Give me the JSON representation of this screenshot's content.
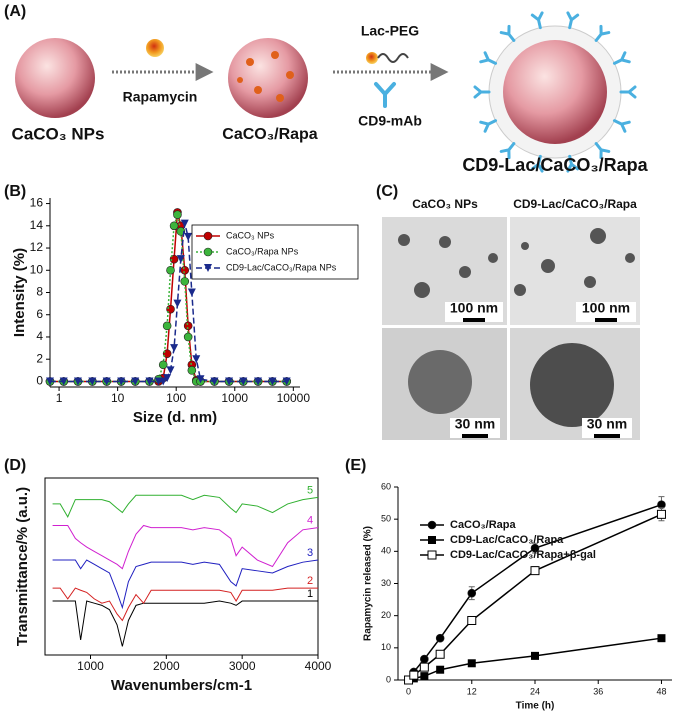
{
  "scheme": {
    "panel": "(A)",
    "labels": [
      "CaCO₃ NPs",
      "Rapamycin",
      "CaCO₃/Rapa",
      "Lac-PEG",
      "CD9-mAb",
      "CD9-Lac/CaCO₃/Rapa"
    ]
  },
  "tem": {
    "panel": "(C)",
    "columns": [
      "CaCO₃ NPs",
      "CD9-Lac/CaCO₃/Rapa"
    ],
    "scale_bars": [
      "100 nm",
      "100 nm",
      "30 nm",
      "30 nm"
    ]
  },
  "chart_data": [
    {
      "type": "line",
      "panel": "(B)",
      "xlabel": "Size (d. nm)",
      "ylabel": "Intensity (%)",
      "xlog": true,
      "xlim": [
        0.7,
        13000
      ],
      "ylim": [
        -0.5,
        16.5
      ],
      "xticks": [
        1,
        10,
        100,
        1000,
        10000
      ],
      "yticks": [
        0,
        2,
        4,
        6,
        8,
        10,
        12,
        14,
        16
      ],
      "legend": "upper right",
      "x": [
        0.7,
        1.2,
        2.1,
        3.7,
        6.5,
        11.5,
        20,
        35,
        50,
        60,
        70,
        80,
        92,
        105,
        120,
        140,
        160,
        185,
        220,
        260,
        450,
        800,
        1400,
        2500,
        4400,
        7700
      ],
      "series": [
        {
          "name": "CaCO₃ NPs",
          "color": "#c00000",
          "marker": "circle",
          "dash": "solid",
          "values": [
            0,
            0,
            0,
            0,
            0,
            0,
            0,
            0,
            0,
            0.3,
            2.5,
            6.5,
            11,
            15.2,
            14,
            10,
            5,
            1.5,
            0.1,
            0,
            0,
            0,
            0,
            0,
            0,
            0
          ]
        },
        {
          "name": "CaCO₃/Rapa NPs",
          "color": "#3cb43c",
          "marker": "circle",
          "dash": "dotted",
          "values": [
            0,
            0,
            0,
            0,
            0,
            0,
            0,
            0,
            0.2,
            1.5,
            5,
            10,
            14,
            15,
            13.5,
            9,
            4,
            1,
            0,
            0,
            0,
            0,
            0,
            0,
            0,
            0
          ]
        },
        {
          "name": "CD9-Lac/CaCO₃/Rapa NPs",
          "color": "#1a2a8c",
          "marker": "triangle-down",
          "dash": "dashed",
          "values": [
            0,
            0,
            0,
            0,
            0,
            0,
            0,
            0,
            0,
            0,
            0.3,
            1,
            3,
            7,
            11,
            14.2,
            13,
            8,
            2,
            0.2,
            0,
            0,
            0,
            0,
            0,
            0
          ]
        }
      ]
    },
    {
      "type": "line",
      "panel": "(D)",
      "xlabel": "Wavenumbers/cm-1",
      "ylabel": "Transmittance/% (a.u.)",
      "xlim": [
        400,
        4000
      ],
      "ylim": [
        -4,
        78
      ],
      "xticks": [
        1000,
        2000,
        3000,
        4000
      ],
      "legend": "line-end",
      "frame": "box",
      "x": [
        500,
        600,
        700,
        800,
        870,
        950,
        1050,
        1150,
        1250,
        1350,
        1420,
        1500,
        1600,
        1700,
        1800,
        2000,
        2200,
        2350,
        2500,
        2700,
        2850,
        2920,
        3000,
        3200,
        3400,
        3600,
        3800,
        4000
      ],
      "series": [
        {
          "name": "1",
          "color": "#000000",
          "values": [
            21,
            21,
            21,
            21,
            3,
            21,
            20,
            19,
            17,
            10,
            0,
            12,
            19,
            20,
            20,
            20,
            20,
            20,
            20,
            21,
            20,
            19,
            21,
            21,
            21,
            21,
            21,
            21
          ]
        },
        {
          "name": "2",
          "color": "#d42020",
          "values": [
            27,
            27,
            22,
            27,
            26,
            25,
            22,
            20,
            21,
            15,
            12,
            18,
            24,
            20,
            26,
            26,
            26,
            26,
            26,
            26,
            25,
            21,
            26,
            26,
            26,
            27,
            27,
            27
          ]
        },
        {
          "name": "3",
          "color": "#2020c0",
          "values": [
            40,
            40,
            40,
            40,
            36,
            40,
            38,
            36,
            34,
            25,
            18,
            30,
            37,
            38,
            39,
            39,
            39,
            38,
            39,
            38,
            30,
            28,
            36,
            35,
            34,
            37,
            39,
            40
          ]
        },
        {
          "name": "4",
          "color": "#d020d0",
          "values": [
            56,
            56,
            56,
            50,
            48,
            46,
            44,
            42,
            40,
            38,
            36,
            44,
            52,
            56,
            55,
            55,
            55,
            54,
            55,
            54,
            50,
            42,
            46,
            40,
            37,
            48,
            54,
            55
          ]
        },
        {
          "name": "5",
          "color": "#30b030",
          "values": [
            66,
            66,
            60,
            68,
            68,
            68,
            68,
            68,
            67,
            64,
            62,
            66,
            70,
            70,
            70,
            70,
            70,
            68,
            70,
            69,
            64,
            62,
            66,
            65,
            62,
            66,
            68,
            69
          ]
        }
      ]
    },
    {
      "type": "line",
      "panel": "(E)",
      "xlabel": "Time (h)",
      "ylabel": "Rapamycin released (%)",
      "xlim": [
        -2,
        50
      ],
      "ylim": [
        0,
        60
      ],
      "xticks": [
        0,
        12,
        24,
        36,
        48
      ],
      "yticks": [
        0,
        10,
        20,
        30,
        40,
        50,
        60
      ],
      "legend": "upper left",
      "x": [
        0,
        1,
        3,
        6,
        12,
        24,
        48
      ],
      "series": [
        {
          "name": "CaCO₃/Rapa",
          "color": "#000000",
          "marker": "circle",
          "dash": "solid",
          "values": [
            0,
            2.5,
            6.5,
            13,
            27,
            41,
            54.5
          ],
          "errors": [
            0,
            0.5,
            0.5,
            0.8,
            2,
            1.5,
            2.5
          ]
        },
        {
          "name": "CD9-Lac/CaCO₃/Rapa",
          "color": "#000000",
          "marker": "square",
          "dash": "solid",
          "values": [
            0,
            0.5,
            1.2,
            3.2,
            5.2,
            7.5,
            13
          ],
          "errors": [
            0,
            0.2,
            0.3,
            0.4,
            0.5,
            0.6,
            1
          ]
        },
        {
          "name": "CD9-Lac/CaCO₃/Rapa+β-gal",
          "color": "#000000",
          "marker": "square-open",
          "dash": "solid",
          "values": [
            0,
            1.5,
            4,
            8,
            18.5,
            34,
            51.5
          ],
          "errors": [
            0,
            0.4,
            0.5,
            0.7,
            1,
            1.2,
            2
          ]
        }
      ]
    }
  ]
}
